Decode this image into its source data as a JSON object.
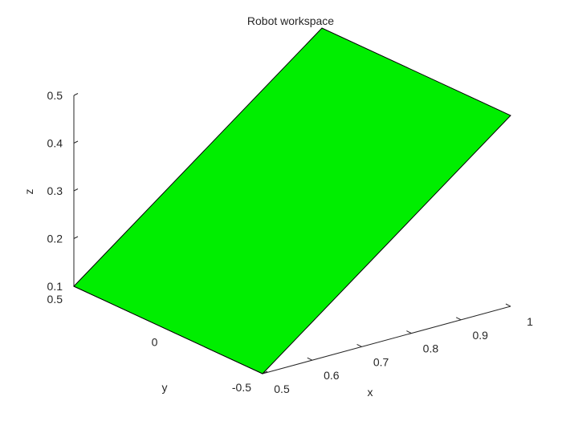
{
  "chart_data": {
    "type": "surface",
    "title": "Robot workspace",
    "xlabel": "x",
    "ylabel": "y",
    "zlabel": "z",
    "xlim": [
      0.5,
      1.0
    ],
    "ylim": [
      -0.5,
      0.5
    ],
    "zlim": [
      0.1,
      0.5
    ],
    "x_ticks": [
      "0.5",
      "0.6",
      "0.7",
      "0.8",
      "0.9",
      "1"
    ],
    "y_ticks": [
      "-0.5",
      "0",
      "0.5"
    ],
    "z_ticks": [
      "0.1",
      "0.2",
      "0.3",
      "0.4",
      "0.5"
    ],
    "grid": false,
    "surface": {
      "face_color": "#00ee00",
      "edge_color": "#000000",
      "vertices": [
        {
          "x": 0.5,
          "y": 0.5,
          "z": 0.1
        },
        {
          "x": 0.5,
          "y": -0.5,
          "z": 0.1
        },
        {
          "x": 1.0,
          "y": -0.5,
          "z": 0.5
        },
        {
          "x": 1.0,
          "y": 0.5,
          "z": 0.5
        }
      ]
    }
  }
}
